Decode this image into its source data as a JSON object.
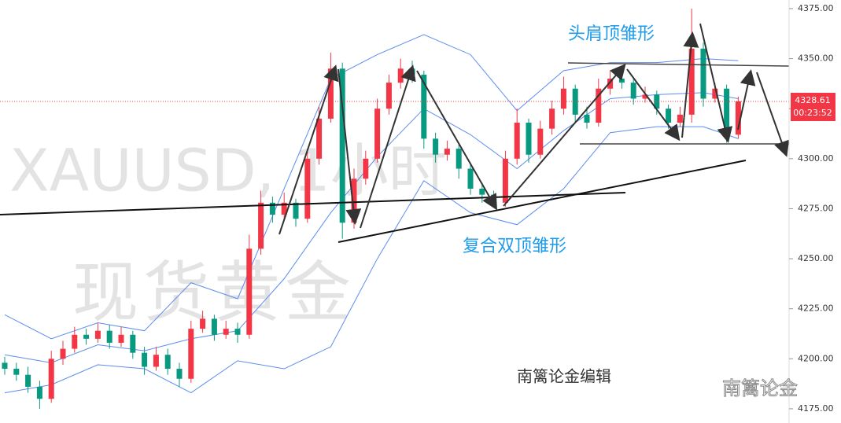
{
  "chart_data": {
    "type": "candlestick",
    "watermark": "XAUUSD, 1小时",
    "watermark_name": "现货黄金",
    "annotations": [
      "头肩顶雏形",
      "复合双顶雏形",
      "南篱论金编辑"
    ],
    "brand": "南篱论金",
    "up_color": "#f23645",
    "down_color": "#089981",
    "open": [
      4198,
      4195,
      4192,
      4186,
      4180,
      4200,
      4205,
      4212,
      4210,
      4214,
      4208,
      4212,
      4203,
      4196,
      4202,
      4195,
      4190,
      4215,
      4220,
      4212,
      4215,
      4212,
      4255,
      4278,
      4272,
      4278,
      4270,
      4300,
      4320,
      4345,
      4268,
      4290,
      4300,
      4325,
      4338,
      4345,
      4342,
      4310,
      4302,
      4305,
      4295,
      4285,
      4282,
      4278,
      4300,
      4318,
      4302,
      4315,
      4325,
      4335,
      4322,
      4318,
      4335,
      4340,
      4338,
      4330,
      4332,
      4325,
      4318,
      4322,
      4355,
      4330,
      4335,
      4312
    ],
    "high": [
      4201,
      4198,
      4196,
      4189,
      4204,
      4209,
      4216,
      4215,
      4218,
      4217,
      4216,
      4214,
      4206,
      4206,
      4205,
      4198,
      4219,
      4224,
      4222,
      4219,
      4218,
      4262,
      4284,
      4281,
      4283,
      4280,
      4305,
      4326,
      4353,
      4348,
      4295,
      4304,
      4330,
      4342,
      4350,
      4349,
      4344,
      4313,
      4309,
      4307,
      4298,
      4288,
      4284,
      4304,
      4325,
      4320,
      4319,
      4329,
      4341,
      4337,
      4326,
      4340,
      4344,
      4343,
      4340,
      4336,
      4334,
      4327,
      4326,
      4375,
      4358,
      4338,
      4337,
      4331
    ],
    "low": [
      4192,
      4189,
      4183,
      4175,
      4178,
      4197,
      4203,
      4207,
      4208,
      4205,
      4206,
      4200,
      4192,
      4194,
      4192,
      4186,
      4188,
      4213,
      4209,
      4210,
      4208,
      4210,
      4252,
      4268,
      4270,
      4266,
      4268,
      4297,
      4318,
      4260,
      4265,
      4287,
      4298,
      4322,
      4335,
      4338,
      4305,
      4298,
      4299,
      4290,
      4282,
      4278,
      4276,
      4276,
      4297,
      4298,
      4300,
      4312,
      4322,
      4318,
      4315,
      4316,
      4332,
      4335,
      4327,
      4328,
      4322,
      4315,
      4316,
      4318,
      4326,
      4328,
      4308,
      4310
    ],
    "close": [
      4195,
      4192,
      4186,
      4180,
      4200,
      4205,
      4212,
      4210,
      4214,
      4208,
      4212,
      4203,
      4196,
      4202,
      4195,
      4190,
      4215,
      4220,
      4212,
      4215,
      4212,
      4255,
      4278,
      4272,
      4278,
      4270,
      4300,
      4320,
      4345,
      4268,
      4290,
      4300,
      4325,
      4338,
      4345,
      4342,
      4310,
      4302,
      4305,
      4295,
      4285,
      4282,
      4278,
      4300,
      4318,
      4302,
      4315,
      4325,
      4335,
      4322,
      4318,
      4335,
      4340,
      4338,
      4330,
      4332,
      4325,
      4318,
      4322,
      4355,
      4330,
      4335,
      4312,
      4328.61
    ],
    "bands": {
      "color": "#5b8def",
      "x": [
        0,
        4,
        8,
        12,
        16,
        20,
        24,
        28,
        32,
        36,
        40,
        44,
        48,
        52,
        56,
        60,
        63
      ],
      "upper": [
        4222,
        4210,
        4218,
        4214,
        4238,
        4230,
        4285,
        4340,
        4352,
        4362,
        4352,
        4324,
        4344,
        4348,
        4348,
        4350,
        4349
      ],
      "middle": [
        4202,
        4198,
        4207,
        4204,
        4210,
        4214,
        4240,
        4273,
        4301,
        4325,
        4312,
        4295,
        4314,
        4330,
        4332,
        4333,
        4330
      ],
      "lower": [
        4183,
        4187,
        4197,
        4195,
        4183,
        4199,
        4195,
        4206,
        4250,
        4289,
        4273,
        4267,
        4285,
        4313,
        4316,
        4316,
        4310
      ]
    },
    "last_price": 4328.61,
    "countdown": "00:23:52",
    "ylim": [
      4167.9,
      4379.3
    ],
    "yticks": [
      {
        "value": 4175,
        "label": "4175.00"
      },
      {
        "value": 4200,
        "label": "4200.00"
      },
      {
        "value": 4225,
        "label": "4225.00"
      },
      {
        "value": 4250,
        "label": "4250.00"
      },
      {
        "value": 4275,
        "label": "4275.00"
      },
      {
        "value": 4300,
        "label": "4300.00"
      },
      {
        "value": 4325,
        "label": "4325.00"
      },
      {
        "value": 4350,
        "label": "4350.00"
      },
      {
        "value": 4375,
        "label": "4375.00"
      }
    ]
  }
}
